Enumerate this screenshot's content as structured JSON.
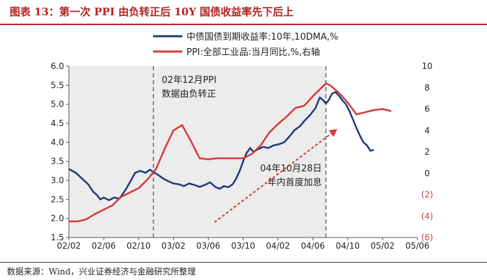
{
  "header": {
    "title": "图表 13：第一次 PPI 由负转正后 10Y 国债收益率先下后上"
  },
  "footer": {
    "source": "数据来源：Wind，兴业证券经济与金融研究所整理"
  },
  "colors": {
    "bond": "#1f3a78",
    "ppi": "#d43a3a",
    "shade": "#ececec",
    "redText": "#d43a3a",
    "title": "#b22222"
  },
  "chart_data": {
    "type": "line",
    "x_ticks": [
      "02/02",
      "02/06",
      "02/10",
      "03/02",
      "03/06",
      "03/10",
      "04/02",
      "04/06",
      "04/10",
      "05/02",
      "05/06"
    ],
    "x_range": [
      0,
      40
    ],
    "y_left": {
      "range": [
        1.5,
        6.0
      ],
      "ticks": [
        "1.5",
        "2.0",
        "2.5",
        "3.0",
        "3.5",
        "4.0",
        "4.5",
        "5.0",
        "5.5",
        "6.0"
      ]
    },
    "y_right": {
      "range": [
        -6,
        10
      ],
      "ticks": [
        {
          "value": 10,
          "label": "10",
          "negative": false
        },
        {
          "value": 8,
          "label": "8",
          "negative": false
        },
        {
          "value": 6,
          "label": "6",
          "negative": false
        },
        {
          "value": 4,
          "label": "4",
          "negative": false
        },
        {
          "value": 2,
          "label": "2",
          "negative": false
        },
        {
          "value": 0,
          "label": "0",
          "negative": false
        },
        {
          "value": -2,
          "label": "(2)",
          "negative": true
        },
        {
          "value": -4,
          "label": "(4)",
          "negative": true
        },
        {
          "value": -6,
          "label": "(6)",
          "negative": true
        }
      ]
    },
    "shaded_range": [
      0,
      29.5
    ],
    "markers": [
      {
        "x": 9.7,
        "label_lines": [
          "02年12月PPI",
          "数据由负转正"
        ]
      },
      {
        "x": 29.5,
        "label_lines": [
          "04年10月28日",
          "年内首度加息"
        ]
      }
    ],
    "series": [
      {
        "name": "中债国债到期收益率:10年,10DMA,%",
        "axis": "left",
        "points": [
          [
            0,
            3.3
          ],
          [
            0.8,
            3.2
          ],
          [
            1.5,
            3.05
          ],
          [
            2.2,
            2.9
          ],
          [
            2.8,
            2.7
          ],
          [
            3.2,
            2.62
          ],
          [
            3.6,
            2.5
          ],
          [
            4,
            2.55
          ],
          [
            4.6,
            2.48
          ],
          [
            5.2,
            2.55
          ],
          [
            5.8,
            2.52
          ],
          [
            6.5,
            2.75
          ],
          [
            7,
            2.95
          ],
          [
            7.6,
            3.2
          ],
          [
            8.2,
            3.25
          ],
          [
            8.8,
            3.2
          ],
          [
            9.3,
            3.28
          ],
          [
            9.7,
            3.22
          ],
          [
            10.2,
            3.15
          ],
          [
            10.8,
            3.05
          ],
          [
            11.4,
            2.98
          ],
          [
            12,
            2.92
          ],
          [
            12.6,
            2.9
          ],
          [
            13.2,
            2.85
          ],
          [
            13.8,
            2.92
          ],
          [
            14.4,
            2.88
          ],
          [
            15,
            2.83
          ],
          [
            15.6,
            2.88
          ],
          [
            16.2,
            2.95
          ],
          [
            16.8,
            2.83
          ],
          [
            17.3,
            2.78
          ],
          [
            17.8,
            2.85
          ],
          [
            18.3,
            2.82
          ],
          [
            18.8,
            2.9
          ],
          [
            19.2,
            3.05
          ],
          [
            19.6,
            3.25
          ],
          [
            20,
            3.5
          ],
          [
            20.4,
            3.72
          ],
          [
            20.8,
            3.85
          ],
          [
            21.2,
            3.75
          ],
          [
            21.7,
            3.82
          ],
          [
            22.3,
            3.88
          ],
          [
            22.9,
            3.85
          ],
          [
            23.5,
            3.92
          ],
          [
            24.1,
            3.95
          ],
          [
            24.7,
            4.0
          ],
          [
            25.3,
            4.15
          ],
          [
            25.9,
            4.32
          ],
          [
            26.5,
            4.42
          ],
          [
            27.1,
            4.58
          ],
          [
            27.7,
            4.72
          ],
          [
            28.3,
            4.9
          ],
          [
            28.8,
            5.18
          ],
          [
            29.2,
            5.1
          ],
          [
            29.5,
            5.02
          ],
          [
            29.8,
            5.1
          ],
          [
            30.2,
            5.28
          ],
          [
            30.6,
            5.32
          ],
          [
            31,
            5.22
          ],
          [
            31.4,
            5.1
          ],
          [
            31.8,
            5.0
          ],
          [
            32.2,
            4.82
          ],
          [
            32.6,
            4.6
          ],
          [
            33,
            4.38
          ],
          [
            33.4,
            4.18
          ],
          [
            33.8,
            4.0
          ],
          [
            34.2,
            3.92
          ],
          [
            34.6,
            3.78
          ],
          [
            35,
            3.8
          ]
        ]
      },
      {
        "name": "PPI:全部工业品:当月同比,%,右轴",
        "axis": "right",
        "points": [
          [
            0,
            -4.5
          ],
          [
            1,
            -4.5
          ],
          [
            2,
            -4.3
          ],
          [
            3,
            -3.8
          ],
          [
            4,
            -3.4
          ],
          [
            5,
            -3.0
          ],
          [
            6,
            -2.2
          ],
          [
            7,
            -1.8
          ],
          [
            8,
            -1.4
          ],
          [
            9,
            -0.6
          ],
          [
            10,
            0.4
          ],
          [
            11,
            2.3
          ],
          [
            12,
            4.0
          ],
          [
            13,
            4.5
          ],
          [
            14,
            3.0
          ],
          [
            15,
            1.4
          ],
          [
            16,
            1.3
          ],
          [
            17,
            1.4
          ],
          [
            18,
            1.4
          ],
          [
            19,
            1.4
          ],
          [
            20,
            1.4
          ],
          [
            21,
            1.8
          ],
          [
            22,
            2.6
          ],
          [
            23,
            3.8
          ],
          [
            24,
            4.6
          ],
          [
            25,
            5.3
          ],
          [
            26,
            6.1
          ],
          [
            27,
            6.3
          ],
          [
            28,
            7.2
          ],
          [
            29,
            8.0
          ],
          [
            29.5,
            8.4
          ],
          [
            30,
            8.2
          ],
          [
            31,
            7.5
          ],
          [
            32,
            6.6
          ],
          [
            33,
            5.5
          ],
          [
            34,
            5.7
          ],
          [
            35,
            5.9
          ],
          [
            36,
            6.0
          ],
          [
            37,
            5.8
          ]
        ]
      }
    ],
    "annotations": [
      {
        "type": "trend-arrow",
        "from": [
          16.7,
          1.9
        ],
        "to": [
          30.8,
          4.35
        ]
      }
    ]
  }
}
